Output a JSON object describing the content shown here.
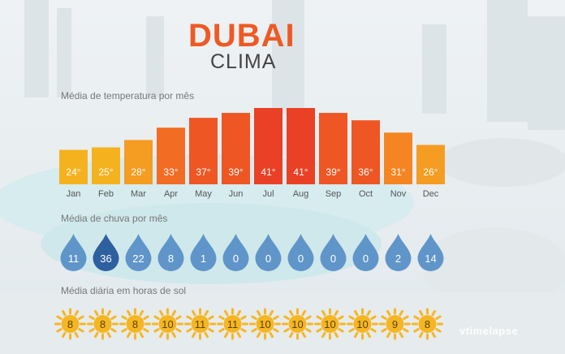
{
  "header": {
    "title": "DUBAI",
    "subtitle": "CLIMA"
  },
  "sections": {
    "temperature_label": "Média de temperatura por mês",
    "rain_label": "Média  de chuva por mês",
    "sun_label": "Média diária em horas de sol"
  },
  "watermark": {
    "brand": "vtimelapse",
    "sub": ""
  },
  "colors": {
    "temp_scale": [
      "#f5b21f",
      "#f59c22",
      "#f58522",
      "#f26c24",
      "#ee5624",
      "#ea4025"
    ],
    "drop": "#5f95c9",
    "drop_highlight": "#2e5f9e",
    "sun": "#f6b623",
    "accent": "#ee5a24"
  },
  "chart_data": [
    {
      "type": "bar",
      "title": "Média de temperatura por mês",
      "categories": [
        "Jan",
        "Feb",
        "Mar",
        "Apr",
        "May",
        "Jun",
        "Jul",
        "Aug",
        "Sep",
        "Oct",
        "Nov",
        "Dec"
      ],
      "values": [
        24,
        25,
        28,
        33,
        37,
        39,
        41,
        41,
        39,
        36,
        31,
        26
      ],
      "value_labels": [
        "24°",
        "25°",
        "28°",
        "33°",
        "37°",
        "39°",
        "41°",
        "41°",
        "39°",
        "36°",
        "31°",
        "26°"
      ],
      "ylim": [
        0,
        41
      ],
      "grid": false
    },
    {
      "type": "table",
      "title": "Média  de chuva por mês",
      "categories": [
        "Jan",
        "Feb",
        "Mar",
        "Apr",
        "May",
        "Jun",
        "Jul",
        "Aug",
        "Sep",
        "Oct",
        "Nov",
        "Dec"
      ],
      "values": [
        11,
        36,
        22,
        8,
        1,
        0,
        0,
        0,
        0,
        0,
        2,
        14
      ],
      "highlight_index": 1
    },
    {
      "type": "table",
      "title": "Média diária em horas de sol",
      "categories": [
        "Jan",
        "Feb",
        "Mar",
        "Apr",
        "May",
        "Jun",
        "Jul",
        "Aug",
        "Sep",
        "Oct",
        "Nov",
        "Dec"
      ],
      "values": [
        8,
        8,
        8,
        10,
        11,
        11,
        10,
        10,
        10,
        10,
        9,
        8
      ]
    }
  ]
}
